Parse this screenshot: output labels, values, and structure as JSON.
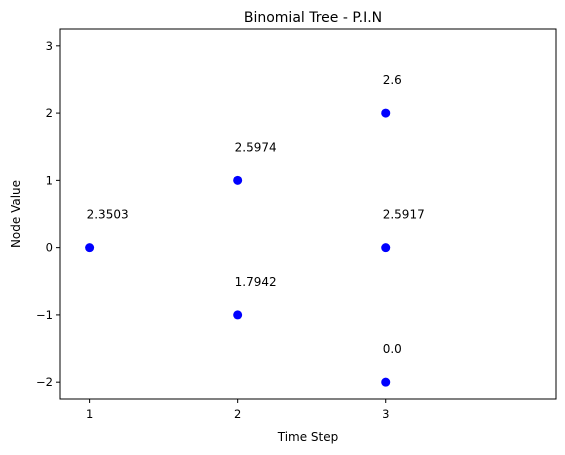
{
  "chart_data": {
    "type": "scatter",
    "title": "Binomial Tree - P.I.N",
    "xlabel": "Time Step",
    "ylabel": "Node Value",
    "xlim": [
      0.8,
      4.15
    ],
    "ylim": [
      -2.25,
      3.25
    ],
    "xticks": [
      1,
      2,
      3
    ],
    "yticks": [
      -2,
      -1,
      0,
      1,
      2,
      3
    ],
    "ytick_labels": [
      "−2",
      "−1",
      "0",
      "1",
      "2",
      "3"
    ],
    "grid": false,
    "marker_color": "#0000ff",
    "points": [
      {
        "x": 1,
        "y": 0,
        "label": "2.3503"
      },
      {
        "x": 2,
        "y": 1,
        "label": "2.5974"
      },
      {
        "x": 2,
        "y": -1,
        "label": "1.7942"
      },
      {
        "x": 3,
        "y": 2,
        "label": "2.6"
      },
      {
        "x": 3,
        "y": 0,
        "label": "2.5917"
      },
      {
        "x": 3,
        "y": -2,
        "label": "0.0"
      }
    ]
  }
}
